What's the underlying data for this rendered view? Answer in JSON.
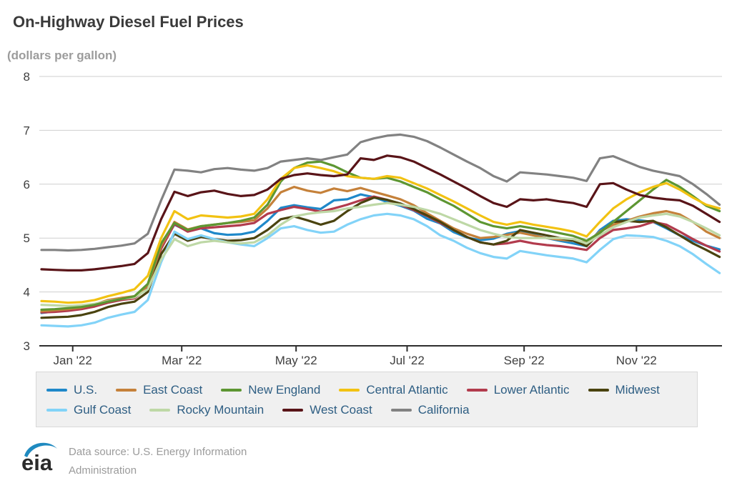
{
  "title": "On-Highway Diesel Fuel Prices",
  "subtitle": "(dollars per gallon)",
  "footer": {
    "logo_text": "eia",
    "source_line1": "Data source: U.S. Energy Information",
    "source_line2": "Administration"
  },
  "colors": {
    "title_text": "#3a3a3a",
    "subtitle_text": "#9c9c9c",
    "axis_text": "#3f3f3f",
    "axis_line": "#2e2e2e",
    "gridline": "#cfcfcf",
    "legend_text": "#2e5e83",
    "legend_background": "#f0f0f0",
    "footer_text": "#9b9b9b",
    "logo_blue": "#1f8ac0",
    "logo_dark": "#2b2b2b"
  },
  "chart_data": {
    "type": "line",
    "title": "On-Highway Diesel Fuel Prices",
    "subtitle": "(dollars per gallon)",
    "xlabel": "",
    "ylabel": "dollars per gallon",
    "x_unit": "weekly, Jan 2022 - Dec 2022",
    "ylim": [
      3,
      8
    ],
    "grid": true,
    "legend_position": "bottom",
    "y_ticks": [
      3,
      4,
      5,
      6,
      7,
      8
    ],
    "x_ticks": [
      {
        "label": "Jan '22",
        "week": 2.35
      },
      {
        "label": "Mar '22",
        "week": 10.55
      },
      {
        "label": "May '22",
        "week": 19.15
      },
      {
        "label": "Jul '22",
        "week": 27.5
      },
      {
        "label": "Sep '22",
        "week": 36.3
      },
      {
        "label": "Nov '22",
        "week": 44.75
      }
    ],
    "series": [
      {
        "name": "U.S.",
        "color": "#1f88c9",
        "values": [
          3.61,
          3.64,
          3.66,
          3.69,
          3.76,
          3.84,
          3.88,
          3.91,
          4.1,
          4.85,
          5.25,
          5.13,
          5.18,
          5.09,
          5.06,
          5.07,
          5.12,
          5.32,
          5.56,
          5.61,
          5.57,
          5.54,
          5.7,
          5.72,
          5.81,
          5.76,
          5.67,
          5.6,
          5.51,
          5.36,
          5.27,
          5.11,
          5.01,
          4.96,
          4.99,
          5.08,
          5.13,
          5.06,
          5.0,
          4.95,
          4.9,
          4.85,
          5.15,
          5.32,
          5.35,
          5.33,
          5.3,
          5.18,
          5.05,
          4.95,
          4.86,
          4.79
        ]
      },
      {
        "name": "East Coast",
        "color": "#c5813a",
        "values": [
          3.64,
          3.66,
          3.68,
          3.71,
          3.77,
          3.85,
          3.89,
          3.92,
          4.12,
          4.85,
          5.3,
          5.16,
          5.22,
          5.25,
          5.28,
          5.3,
          5.33,
          5.55,
          5.85,
          5.95,
          5.88,
          5.84,
          5.92,
          5.87,
          5.93,
          5.86,
          5.79,
          5.72,
          5.61,
          5.46,
          5.32,
          5.18,
          5.08,
          5.0,
          5.02,
          5.06,
          5.1,
          5.05,
          5.0,
          4.97,
          4.95,
          4.92,
          5.12,
          5.25,
          5.32,
          5.4,
          5.46,
          5.5,
          5.44,
          5.3,
          5.12,
          5.0
        ]
      },
      {
        "name": "New England",
        "color": "#5d9632",
        "values": [
          3.67,
          3.68,
          3.7,
          3.72,
          3.76,
          3.82,
          3.87,
          3.92,
          4.15,
          4.9,
          5.28,
          5.15,
          5.22,
          5.25,
          5.28,
          5.32,
          5.38,
          5.62,
          6.05,
          6.3,
          6.4,
          6.42,
          6.34,
          6.22,
          6.12,
          6.1,
          6.12,
          6.05,
          5.95,
          5.85,
          5.72,
          5.6,
          5.45,
          5.3,
          5.22,
          5.18,
          5.22,
          5.18,
          5.14,
          5.09,
          5.04,
          4.95,
          5.1,
          5.3,
          5.5,
          5.7,
          5.9,
          6.08,
          5.95,
          5.78,
          5.6,
          5.5
        ]
      },
      {
        "name": "Central Atlantic",
        "color": "#f2c212",
        "values": [
          3.83,
          3.82,
          3.8,
          3.81,
          3.85,
          3.92,
          3.98,
          4.05,
          4.3,
          5.0,
          5.5,
          5.35,
          5.42,
          5.4,
          5.38,
          5.4,
          5.45,
          5.72,
          6.1,
          6.3,
          6.35,
          6.3,
          6.24,
          6.15,
          6.12,
          6.1,
          6.15,
          6.12,
          6.02,
          5.92,
          5.8,
          5.68,
          5.55,
          5.42,
          5.3,
          5.25,
          5.3,
          5.25,
          5.21,
          5.17,
          5.12,
          5.03,
          5.3,
          5.55,
          5.72,
          5.85,
          5.95,
          6.02,
          5.9,
          5.75,
          5.62,
          5.55
        ]
      },
      {
        "name": "Lower Atlantic",
        "color": "#b23b4d",
        "values": [
          3.62,
          3.63,
          3.65,
          3.68,
          3.73,
          3.8,
          3.85,
          3.88,
          4.08,
          4.8,
          5.26,
          5.12,
          5.18,
          5.2,
          5.22,
          5.24,
          5.28,
          5.45,
          5.52,
          5.58,
          5.54,
          5.49,
          5.55,
          5.62,
          5.7,
          5.77,
          5.71,
          5.62,
          5.52,
          5.41,
          5.28,
          5.15,
          5.02,
          4.92,
          4.88,
          4.9,
          4.95,
          4.9,
          4.87,
          4.85,
          4.82,
          4.78,
          5.0,
          5.15,
          5.18,
          5.22,
          5.3,
          5.25,
          5.12,
          4.98,
          4.86,
          4.75
        ]
      },
      {
        "name": "Midwest",
        "color": "#4a430f",
        "values": [
          3.52,
          3.53,
          3.54,
          3.57,
          3.63,
          3.72,
          3.78,
          3.82,
          4.0,
          4.7,
          5.08,
          4.95,
          5.02,
          4.98,
          4.95,
          4.96,
          5.0,
          5.15,
          5.35,
          5.4,
          5.33,
          5.25,
          5.32,
          5.5,
          5.65,
          5.75,
          5.71,
          5.64,
          5.54,
          5.42,
          5.3,
          5.15,
          5.02,
          4.92,
          4.88,
          4.95,
          5.15,
          5.1,
          5.05,
          5.0,
          4.95,
          4.85,
          5.1,
          5.3,
          5.32,
          5.3,
          5.32,
          5.2,
          5.05,
          4.9,
          4.78,
          4.65
        ]
      },
      {
        "name": "Gulf Coast",
        "color": "#82d3f8",
        "values": [
          3.38,
          3.37,
          3.36,
          3.38,
          3.43,
          3.52,
          3.58,
          3.63,
          3.85,
          4.55,
          5.12,
          4.98,
          5.05,
          4.98,
          4.92,
          4.88,
          4.85,
          5.0,
          5.18,
          5.22,
          5.15,
          5.1,
          5.12,
          5.25,
          5.35,
          5.42,
          5.45,
          5.42,
          5.35,
          5.22,
          5.05,
          4.95,
          4.82,
          4.72,
          4.65,
          4.62,
          4.76,
          4.72,
          4.68,
          4.65,
          4.62,
          4.55,
          4.78,
          4.98,
          5.05,
          5.04,
          5.02,
          4.95,
          4.85,
          4.7,
          4.52,
          4.35
        ]
      },
      {
        "name": "Rocky Mountain",
        "color": "#bed8a6",
        "values": [
          3.76,
          3.75,
          3.74,
          3.75,
          3.78,
          3.83,
          3.87,
          3.9,
          4.05,
          4.6,
          4.98,
          4.85,
          4.92,
          4.95,
          4.92,
          4.9,
          4.92,
          5.05,
          5.25,
          5.4,
          5.45,
          5.48,
          5.5,
          5.55,
          5.58,
          5.62,
          5.65,
          5.62,
          5.58,
          5.52,
          5.45,
          5.35,
          5.25,
          5.15,
          5.08,
          5.02,
          5.0,
          5.0,
          5.0,
          5.0,
          4.98,
          4.9,
          5.05,
          5.2,
          5.3,
          5.38,
          5.42,
          5.45,
          5.4,
          5.3,
          5.18,
          5.05
        ]
      },
      {
        "name": "West Coast",
        "color": "#591418",
        "values": [
          4.42,
          4.41,
          4.4,
          4.4,
          4.42,
          4.45,
          4.48,
          4.52,
          4.72,
          5.35,
          5.86,
          5.78,
          5.85,
          5.88,
          5.82,
          5.78,
          5.8,
          5.9,
          6.1,
          6.17,
          6.2,
          6.17,
          6.15,
          6.18,
          6.48,
          6.45,
          6.53,
          6.5,
          6.42,
          6.3,
          6.18,
          6.05,
          5.92,
          5.78,
          5.65,
          5.58,
          5.72,
          5.7,
          5.72,
          5.68,
          5.65,
          5.58,
          6.0,
          6.02,
          5.9,
          5.8,
          5.75,
          5.72,
          5.7,
          5.6,
          5.45,
          5.3
        ]
      },
      {
        "name": "California",
        "color": "#828282",
        "values": [
          4.78,
          4.78,
          4.77,
          4.78,
          4.8,
          4.83,
          4.86,
          4.9,
          5.08,
          5.7,
          6.27,
          6.25,
          6.22,
          6.28,
          6.3,
          6.27,
          6.25,
          6.3,
          6.42,
          6.45,
          6.48,
          6.45,
          6.5,
          6.55,
          6.78,
          6.85,
          6.9,
          6.92,
          6.88,
          6.8,
          6.68,
          6.55,
          6.42,
          6.3,
          6.15,
          6.05,
          6.22,
          6.2,
          6.18,
          6.15,
          6.12,
          6.06,
          6.48,
          6.52,
          6.42,
          6.32,
          6.25,
          6.2,
          6.15,
          6.0,
          5.82,
          5.62
        ]
      }
    ]
  }
}
